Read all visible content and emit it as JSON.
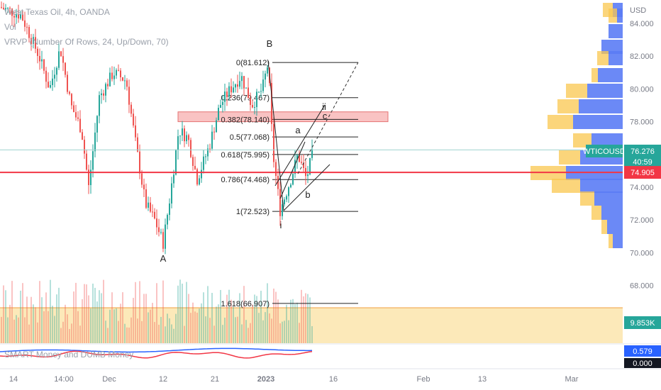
{
  "legend": {
    "symbol_line": "West Texas Oil, 4h, OANDA",
    "vol_label": "Vol",
    "vrvp_label": "VRVP (Number Of Rows, 24, Up/Down, 70)",
    "indicator_label": "SMART Money and DUMB Money"
  },
  "price_axis": {
    "currency": "USD",
    "ticks": [
      "84.000",
      "82.000",
      "80.000",
      "78.000",
      "74.000",
      "72.000",
      "70.000",
      "68.000"
    ]
  },
  "time_axis": {
    "ticks": [
      "14",
      "14:00",
      "Dec",
      "12",
      "21",
      "2023",
      "16",
      "Feb",
      "13",
      "Mar"
    ]
  },
  "badges": {
    "symbol": "WTICOUSD",
    "price": "76.276",
    "countdown": "40:59",
    "line_price": "74.905",
    "volume_value": "9.853K",
    "indicator_value_1": "0.579",
    "indicator_value_2": "0.000"
  },
  "fib": {
    "levels": [
      {
        "label": "0(81.612)",
        "price": 81.612
      },
      {
        "label": "0.236(79.467)",
        "price": 79.467
      },
      {
        "label": "0.382(78.140)",
        "price": 78.14
      },
      {
        "label": "0.5(77.068)",
        "price": 77.068
      },
      {
        "label": "0.618(75.995)",
        "price": 75.995
      },
      {
        "label": "0.786(74.468)",
        "price": 74.468
      },
      {
        "label": "1(72.523)",
        "price": 72.523
      },
      {
        "label": "1.618(66.907)",
        "price": 66.907
      }
    ]
  },
  "wave_labels": [
    "A",
    "B",
    "i",
    "ii",
    "a",
    "b",
    "c"
  ],
  "colors": {
    "up": "#26a69a",
    "down": "#ef5350",
    "horizontal_line": "#f23645",
    "zone_fill": "#f7a9a9",
    "volume_zone": "#fbe3a8",
    "vrvp_up": "#5b7cf5",
    "vrvp_down": "#f9c74f",
    "indicator_blue": "#2962ff",
    "indicator_red": "#f23645"
  },
  "chart_data": {
    "type": "candlestick",
    "timeframe": "4h",
    "price_range": [
      69.5,
      85.0
    ],
    "horizontal_line": 74.905,
    "last_price": 76.276,
    "resistance_zone": [
      78.0,
      78.6
    ],
    "approx_path": [
      [
        0,
        85.0
      ],
      [
        30,
        84.5
      ],
      [
        55,
        82.0
      ],
      [
        70,
        80.0
      ],
      [
        85,
        82.5
      ],
      [
        100,
        79.0
      ],
      [
        115,
        77.5
      ],
      [
        125,
        74.0
      ],
      [
        140,
        79.5
      ],
      [
        160,
        81.0
      ],
      [
        178,
        80.5
      ],
      [
        190,
        77.0
      ],
      [
        205,
        73.0
      ],
      [
        218,
        72.0
      ],
      [
        230,
        70.6
      ],
      [
        240,
        73.5
      ],
      [
        252,
        77.5
      ],
      [
        265,
        77.0
      ],
      [
        278,
        74.5
      ],
      [
        295,
        76.5
      ],
      [
        310,
        79.0
      ],
      [
        325,
        80.0
      ],
      [
        340,
        80.8
      ],
      [
        355,
        79.0
      ],
      [
        370,
        80.0
      ],
      [
        378,
        81.6
      ],
      [
        385,
        76.0
      ],
      [
        395,
        72.6
      ],
      [
        410,
        74.5
      ],
      [
        420,
        76.0
      ],
      [
        432,
        74.5
      ],
      [
        442,
        76.3
      ]
    ]
  }
}
